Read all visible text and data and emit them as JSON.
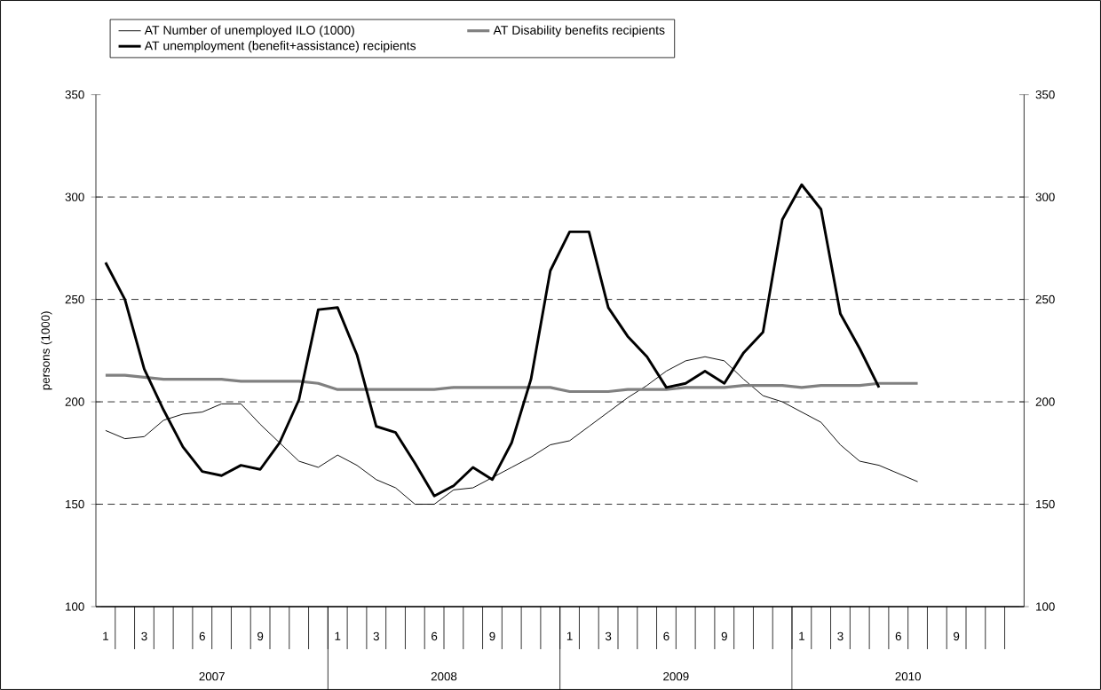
{
  "chart_data": {
    "type": "line",
    "ylabel": "persons (1000)",
    "categories": [
      "1",
      null,
      "3",
      null,
      null,
      "6",
      null,
      null,
      "9",
      null,
      null,
      null,
      "1",
      null,
      "3",
      null,
      null,
      "6",
      null,
      null,
      "9",
      null,
      null,
      null,
      "1",
      null,
      "3",
      null,
      null,
      "6",
      null,
      null,
      "9",
      null,
      null,
      null,
      "1",
      null,
      "3",
      null,
      null,
      "6",
      null,
      null,
      "9",
      null,
      null,
      null
    ],
    "annotations": [
      "2007",
      "2008",
      "2009",
      "2010"
    ],
    "series": [
      {
        "name": "AT Number of unemployed ILO (1000)",
        "color": "#000000",
        "values": [
          186,
          182,
          183,
          191,
          194,
          195,
          199,
          199,
          189,
          180,
          171,
          168,
          174,
          169,
          162,
          158,
          150,
          150,
          157,
          158,
          163,
          168,
          173,
          179,
          181,
          188,
          195,
          202,
          208,
          215,
          220,
          222,
          220,
          211,
          203,
          200,
          195,
          190,
          179,
          171,
          169,
          165,
          161,
          null,
          null,
          null,
          null,
          null
        ]
      },
      {
        "name": "AT Disability benefits recipients",
        "color": "#808080",
        "values": [
          213,
          213,
          212,
          211,
          211,
          211,
          211,
          210,
          210,
          210,
          210,
          209,
          206,
          206,
          206,
          206,
          206,
          206,
          207,
          207,
          207,
          207,
          207,
          207,
          205,
          205,
          205,
          206,
          206,
          206,
          207,
          207,
          207,
          208,
          208,
          208,
          207,
          208,
          208,
          208,
          209,
          209,
          209,
          null,
          null,
          null,
          null,
          null
        ]
      },
      {
        "name": "AT unemployment (benefit+assistance) recipients",
        "color": "#000000",
        "values": [
          268,
          250,
          216,
          196,
          178,
          166,
          164,
          169,
          167,
          180,
          201,
          245,
          246,
          223,
          188,
          185,
          170,
          154,
          159,
          168,
          162,
          180,
          211,
          264,
          283,
          283,
          246,
          232,
          222,
          207,
          209,
          215,
          209,
          224,
          234,
          289,
          306,
          294,
          243,
          226,
          207,
          null,
          null,
          null,
          null,
          null,
          null,
          null
        ]
      }
    ],
    "ylim": [
      100,
      350
    ],
    "yticks": [
      100,
      150,
      200,
      250,
      300,
      350
    ],
    "y2lim": [
      100,
      350
    ],
    "y2ticks": [
      100,
      150,
      200,
      250,
      300,
      350
    ],
    "grid": "y",
    "legend": "top"
  }
}
